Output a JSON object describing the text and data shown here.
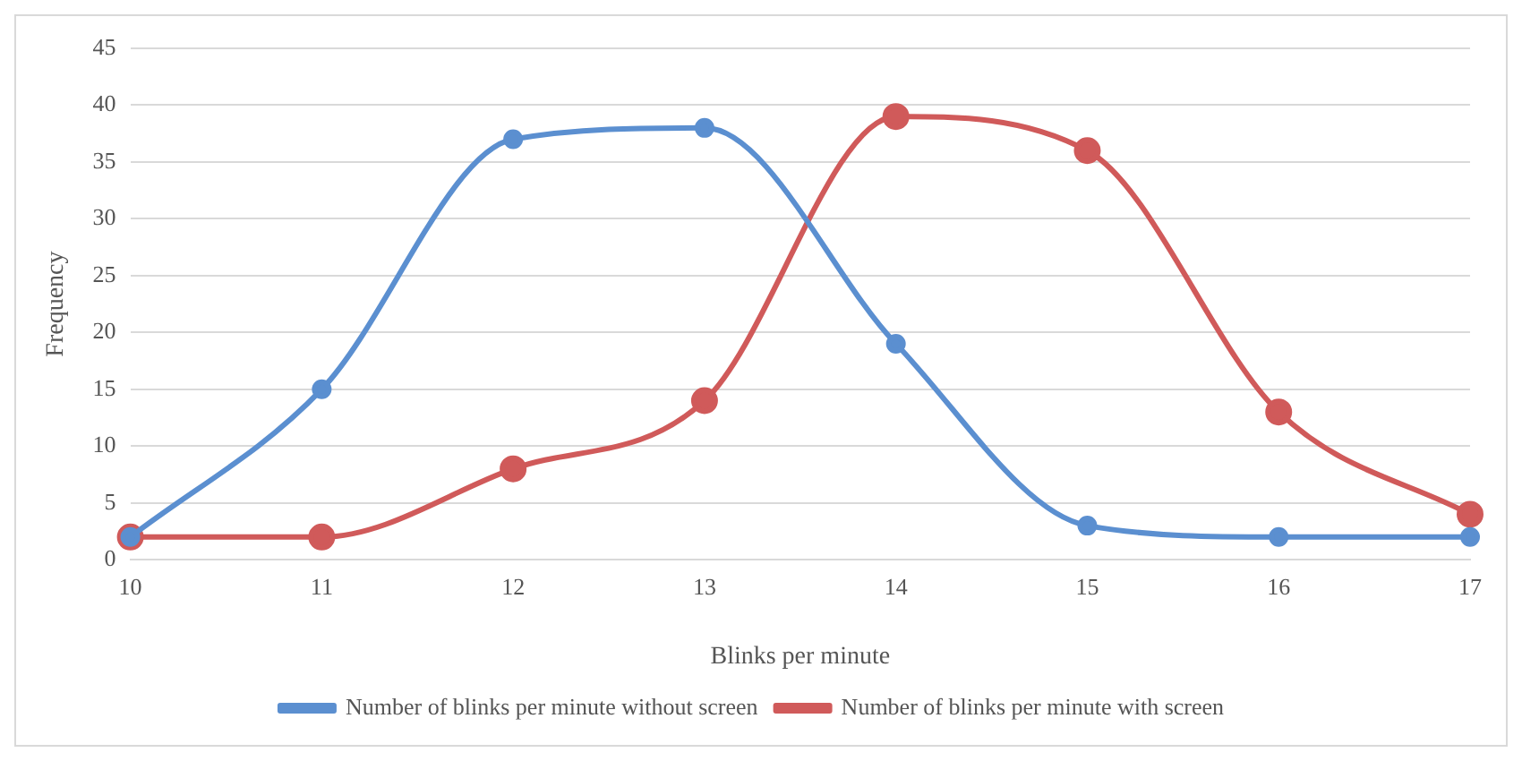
{
  "chart_data": {
    "type": "line",
    "xlabel": "Blinks per minute",
    "ylabel": "Frequency",
    "categories": [
      "10",
      "11",
      "12",
      "13",
      "14",
      "15",
      "16",
      "17"
    ],
    "series": [
      {
        "name": "Number of blinks per minute without screen",
        "color": "#5b8fd0",
        "values": [
          2,
          15,
          37,
          38,
          19,
          3,
          2,
          2
        ]
      },
      {
        "name": "Number of blinks per minute with screen",
        "color": "#d05a5a",
        "values": [
          2,
          2,
          8,
          14,
          39,
          36,
          13,
          4
        ]
      }
    ],
    "ylim": [
      0,
      45
    ],
    "yticks": [
      0,
      5,
      10,
      15,
      20,
      25,
      30,
      35,
      40,
      45
    ],
    "grid": "y",
    "legend": "bottom",
    "marker": "circle",
    "line_style": "solid"
  }
}
